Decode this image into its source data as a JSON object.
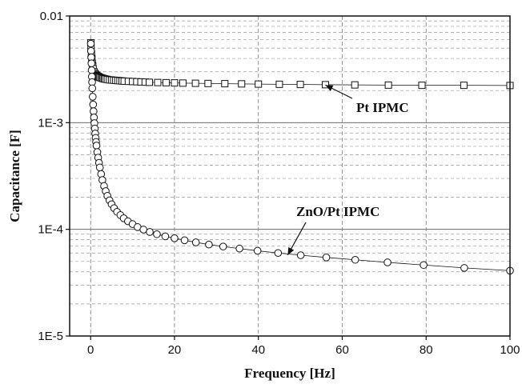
{
  "chart_data": {
    "type": "scatter",
    "title": "",
    "xlabel": "Frequency [Hz]",
    "ylabel": "Capacitance [F]",
    "xlim": [
      -5,
      100
    ],
    "ylim": [
      1e-05,
      0.01
    ],
    "y_scale": "log",
    "grid": true,
    "legend": "none",
    "x_ticks": [
      "0",
      "20",
      "40",
      "60",
      "80",
      "100"
    ],
    "x_tick_values": [
      0,
      20,
      40,
      60,
      80,
      100
    ],
    "y_ticks": [
      "1E-5",
      "1E-4",
      "1E-3",
      "0.01"
    ],
    "y_tick_values": [
      1e-05,
      0.0001,
      0.001,
      0.01
    ],
    "series": [
      {
        "marker": "square",
        "color": "#111111",
        "x": [
          0.05,
          0.1,
          0.2,
          0.3,
          0.4,
          0.5,
          0.6,
          0.8,
          1.0,
          1.2,
          1.4,
          1.6,
          1.8,
          2.0,
          2.2,
          2.5,
          2.8,
          3.0,
          3.3,
          3.6,
          4.0,
          4.5,
          5.0,
          5.5,
          6.0,
          6.5,
          7.0,
          7.5,
          8.0,
          9.0,
          10.0,
          11.0,
          12.0,
          13.0,
          14.0,
          16.0,
          18.0,
          20.0,
          22.0,
          25.0,
          28.0,
          32.0,
          36.0,
          40.0,
          45.0,
          50.0,
          56.0,
          63.0,
          71.0,
          79.0,
          89.0,
          100.0
        ],
        "y": [
          0.0056,
          0.005,
          0.0044,
          0.004,
          0.0036,
          0.0034,
          0.0032,
          0.003,
          0.0029,
          0.00283,
          0.00278,
          0.00274,
          0.00271,
          0.00268,
          0.00266,
          0.00263,
          0.00261,
          0.00259,
          0.00257,
          0.00256,
          0.00254,
          0.00252,
          0.00251,
          0.0025,
          0.00249,
          0.00248,
          0.00247,
          0.00246,
          0.00245,
          0.00244,
          0.00243,
          0.00242,
          0.00241,
          0.0024,
          0.00239,
          0.00238,
          0.00237,
          0.00236,
          0.00235,
          0.00234,
          0.00233,
          0.00232,
          0.00231,
          0.0023,
          0.00229,
          0.00228,
          0.00227,
          0.00226,
          0.00225,
          0.00224,
          0.00224,
          0.00223
        ]
      },
      {
        "marker": "circle",
        "color": "#111111",
        "x": [
          0.05,
          0.1,
          0.15,
          0.2,
          0.25,
          0.3,
          0.35,
          0.4,
          0.5,
          0.6,
          0.7,
          0.8,
          0.9,
          1.0,
          1.1,
          1.2,
          1.3,
          1.4,
          1.6,
          1.8,
          2.0,
          2.2,
          2.5,
          2.8,
          3.2,
          3.6,
          4.0,
          4.5,
          5.0,
          5.6,
          6.3,
          7.1,
          7.9,
          8.9,
          10.0,
          11.2,
          12.6,
          14.1,
          15.8,
          17.8,
          20.0,
          22.4,
          25.1,
          28.2,
          31.6,
          35.5,
          39.8,
          44.7,
          50.1,
          56.2,
          63.1,
          70.8,
          79.4,
          89.1,
          100.0
        ],
        "y": [
          0.0055,
          0.0047,
          0.0041,
          0.0036,
          0.0031,
          0.0027,
          0.0024,
          0.0021,
          0.00175,
          0.00148,
          0.00128,
          0.00112,
          0.00099,
          0.00088,
          0.00079,
          0.00072,
          0.00066,
          0.00061,
          0.00053,
          0.00047,
          0.00042,
          0.00038,
          0.00033,
          0.00029,
          0.000255,
          0.000228,
          0.000206,
          0.000187,
          0.000172,
          0.000158,
          0.000146,
          0.000136,
          0.000127,
          0.000119,
          0.000112,
          0.000105,
          9.95e-05,
          9.45e-05,
          9e-05,
          8.6e-05,
          8.25e-05,
          7.9e-05,
          7.55e-05,
          7.2e-05,
          6.9e-05,
          6.6e-05,
          6.3e-05,
          6e-05,
          5.72e-05,
          5.45e-05,
          5.18e-05,
          4.9e-05,
          4.63e-05,
          4.35e-05,
          4.1e-05
        ]
      }
    ],
    "annotations": [
      {
        "text": "Pt IPMC",
        "arrow_to": [
          56,
          0.00225
        ]
      },
      {
        "text": "ZnO/Pt IPMC",
        "arrow_to": [
          47,
          5.75e-05
        ]
      }
    ]
  }
}
